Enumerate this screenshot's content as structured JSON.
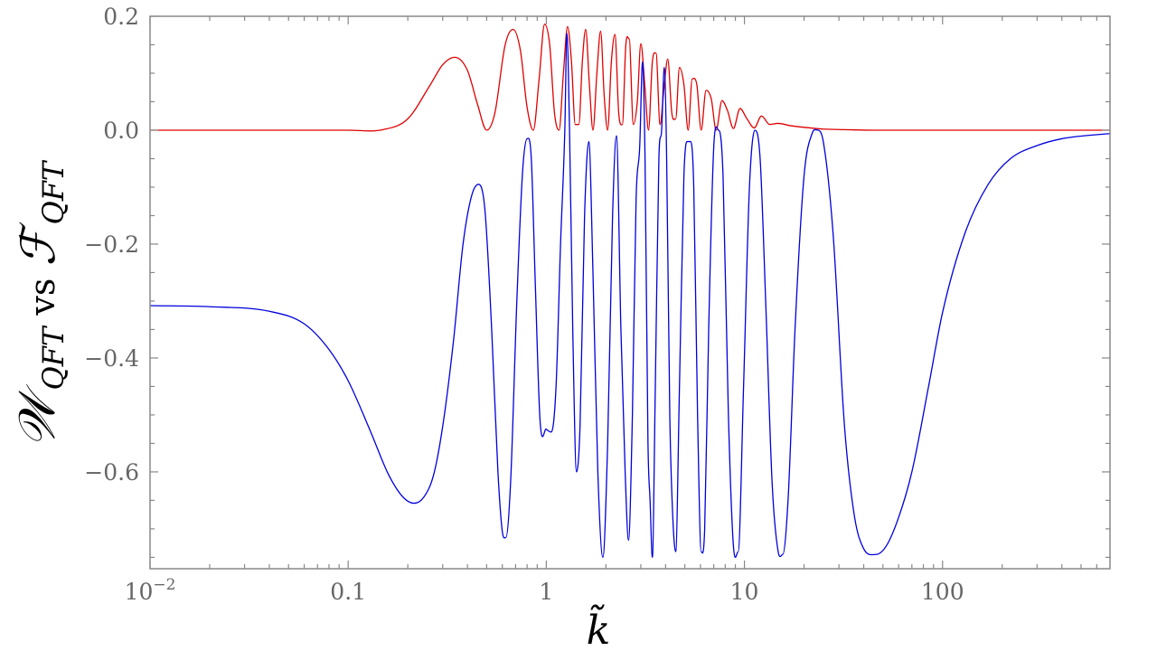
{
  "chart_data": {
    "type": "line",
    "title": "",
    "xlabel": "k̃",
    "ylabel_parts": {
      "w_symbol": "𝒲",
      "w_subscript": "QFT",
      "vs": "vs",
      "f_symbol": "ℱ",
      "f_subscript": "QFT"
    },
    "x_scale": "log",
    "xlim": [
      0.01,
      700
    ],
    "ylim": [
      -0.77,
      0.2
    ],
    "grid": false,
    "x_ticks": [
      {
        "value": 0.01,
        "base": "10",
        "exp": "−2"
      },
      {
        "value": 0.1,
        "label": "0.1"
      },
      {
        "value": 1,
        "label": "1"
      },
      {
        "value": 10,
        "label": "10"
      },
      {
        "value": 100,
        "label": "100"
      }
    ],
    "y_ticks": [
      {
        "value": 0.2,
        "label": "0.2"
      },
      {
        "value": 0.0,
        "label": "0.0"
      },
      {
        "value": -0.2,
        "label": "−0.2"
      },
      {
        "value": -0.4,
        "label": "−0.4"
      },
      {
        "value": -0.6,
        "label": "−0.6"
      }
    ],
    "series": [
      {
        "color": "#e00000",
        "points": [
          [
            0.01,
            0.0
          ],
          [
            0.1,
            0.0
          ],
          [
            0.15,
            0.001
          ],
          [
            0.2,
            0.02
          ],
          [
            0.26,
            0.08
          ],
          [
            0.3,
            0.115
          ],
          [
            0.345,
            0.128
          ],
          [
            0.4,
            0.105
          ],
          [
            0.45,
            0.045
          ],
          [
            0.5,
            0.0
          ],
          [
            0.55,
            0.03
          ],
          [
            0.62,
            0.15
          ],
          [
            0.68,
            0.177
          ],
          [
            0.74,
            0.14
          ],
          [
            0.8,
            0.04
          ],
          [
            0.86,
            0.0
          ],
          [
            0.92,
            0.09
          ],
          [
            0.98,
            0.186
          ],
          [
            1.04,
            0.15
          ],
          [
            1.1,
            0.03
          ],
          [
            1.16,
            0.0
          ],
          [
            1.22,
            0.1
          ],
          [
            1.28,
            0.182
          ],
          [
            1.34,
            0.12
          ],
          [
            1.4,
            0.01
          ],
          [
            1.46,
            0.01
          ],
          [
            1.52,
            0.12
          ],
          [
            1.58,
            0.177
          ],
          [
            1.65,
            0.08
          ],
          [
            1.72,
            0.0
          ],
          [
            1.8,
            0.1
          ],
          [
            1.88,
            0.174
          ],
          [
            1.96,
            0.06
          ],
          [
            2.04,
            0.0
          ],
          [
            2.13,
            0.12
          ],
          [
            2.22,
            0.168
          ],
          [
            2.32,
            0.03
          ],
          [
            2.42,
            0.01
          ],
          [
            2.52,
            0.15
          ],
          [
            2.62,
            0.16
          ],
          [
            2.75,
            0.01
          ],
          [
            2.88,
            0.05
          ],
          [
            3.0,
            0.152
          ],
          [
            3.14,
            0.08
          ],
          [
            3.28,
            0.0
          ],
          [
            3.43,
            0.12
          ],
          [
            3.58,
            0.135
          ],
          [
            3.75,
            0.01
          ],
          [
            3.92,
            0.07
          ],
          [
            4.1,
            0.125
          ],
          [
            4.3,
            0.03
          ],
          [
            4.5,
            0.02
          ],
          [
            4.7,
            0.11
          ],
          [
            4.95,
            0.08
          ],
          [
            5.2,
            0.0
          ],
          [
            5.45,
            0.09
          ],
          [
            5.75,
            0.08
          ],
          [
            6.05,
            0.0
          ],
          [
            6.4,
            0.07
          ],
          [
            6.8,
            0.055
          ],
          [
            7.2,
            0.0
          ],
          [
            7.7,
            0.052
          ],
          [
            8.2,
            0.035
          ],
          [
            8.8,
            0.003
          ],
          [
            9.5,
            0.038
          ],
          [
            10.3,
            0.02
          ],
          [
            11.2,
            0.004
          ],
          [
            12.2,
            0.025
          ],
          [
            13.4,
            0.01
          ],
          [
            14.8,
            0.012
          ],
          [
            17.0,
            0.008
          ],
          [
            20.0,
            0.005
          ],
          [
            25.0,
            0.002
          ],
          [
            32.0,
            0.001
          ],
          [
            45.0,
            0.0
          ],
          [
            100.0,
            0.0
          ],
          [
            700.0,
            0.0
          ]
        ]
      },
      {
        "color": "#0000dd",
        "points": [
          [
            0.01,
            -0.308
          ],
          [
            0.02,
            -0.31
          ],
          [
            0.04,
            -0.318
          ],
          [
            0.06,
            -0.34
          ],
          [
            0.08,
            -0.385
          ],
          [
            0.1,
            -0.44
          ],
          [
            0.13,
            -0.53
          ],
          [
            0.16,
            -0.605
          ],
          [
            0.19,
            -0.645
          ],
          [
            0.215,
            -0.655
          ],
          [
            0.24,
            -0.645
          ],
          [
            0.27,
            -0.605
          ],
          [
            0.3,
            -0.52
          ],
          [
            0.34,
            -0.37
          ],
          [
            0.38,
            -0.2
          ],
          [
            0.42,
            -0.115
          ],
          [
            0.455,
            -0.095
          ],
          [
            0.49,
            -0.14
          ],
          [
            0.53,
            -0.35
          ],
          [
            0.57,
            -0.6
          ],
          [
            0.6,
            -0.705
          ],
          [
            0.625,
            -0.715
          ],
          [
            0.66,
            -0.62
          ],
          [
            0.71,
            -0.3
          ],
          [
            0.76,
            -0.07
          ],
          [
            0.8,
            -0.015
          ],
          [
            0.84,
            -0.05
          ],
          [
            0.88,
            -0.27
          ],
          [
            0.93,
            -0.51
          ],
          [
            1.0,
            -0.525
          ],
          [
            1.06,
            -0.53
          ],
          [
            1.12,
            -0.45
          ],
          [
            1.18,
            -0.2
          ],
          [
            1.24,
            0.0
          ],
          [
            1.27,
            0.17
          ],
          [
            1.31,
            0.0
          ],
          [
            1.36,
            -0.35
          ],
          [
            1.42,
            -0.6
          ],
          [
            1.48,
            -0.52
          ],
          [
            1.56,
            -0.15
          ],
          [
            1.64,
            -0.02
          ],
          [
            1.72,
            -0.25
          ],
          [
            1.82,
            -0.6
          ],
          [
            1.93,
            -0.75
          ],
          [
            2.04,
            -0.55
          ],
          [
            2.16,
            -0.15
          ],
          [
            2.26,
            -0.01
          ],
          [
            2.38,
            -0.35
          ],
          [
            2.5,
            -0.6
          ],
          [
            2.6,
            -0.72
          ],
          [
            2.72,
            -0.5
          ],
          [
            2.84,
            -0.12
          ],
          [
            2.96,
            -0.03
          ],
          [
            3.06,
            0.12
          ],
          [
            3.15,
            -0.05
          ],
          [
            3.26,
            -0.55
          ],
          [
            3.34,
            -0.65
          ],
          [
            3.43,
            -0.75
          ],
          [
            3.55,
            -0.45
          ],
          [
            3.7,
            -0.05
          ],
          [
            3.82,
            0.0
          ],
          [
            3.94,
            0.11
          ],
          [
            4.05,
            -0.05
          ],
          [
            4.2,
            -0.5
          ],
          [
            4.35,
            -0.68
          ],
          [
            4.5,
            -0.74
          ],
          [
            4.7,
            -0.45
          ],
          [
            4.95,
            -0.08
          ],
          [
            5.15,
            -0.02
          ],
          [
            5.35,
            -0.02
          ],
          [
            5.55,
            -0.1
          ],
          [
            5.8,
            -0.5
          ],
          [
            6.05,
            -0.74
          ],
          [
            6.3,
            -0.7
          ],
          [
            6.6,
            -0.35
          ],
          [
            7.0,
            -0.03
          ],
          [
            7.4,
            0.0
          ],
          [
            7.8,
            -0.08
          ],
          [
            8.3,
            -0.5
          ],
          [
            8.8,
            -0.73
          ],
          [
            9.3,
            -0.74
          ],
          [
            9.9,
            -0.45
          ],
          [
            10.6,
            -0.1
          ],
          [
            11.3,
            0.0
          ],
          [
            12.0,
            -0.05
          ],
          [
            12.8,
            -0.3
          ],
          [
            13.8,
            -0.62
          ],
          [
            14.8,
            -0.74
          ],
          [
            15.6,
            -0.745
          ],
          [
            16.6,
            -0.65
          ],
          [
            18.0,
            -0.35
          ],
          [
            20.0,
            -0.08
          ],
          [
            22.0,
            -0.005
          ],
          [
            23.5,
            0.0
          ],
          [
            25.0,
            -0.02
          ],
          [
            28.0,
            -0.18
          ],
          [
            32.0,
            -0.52
          ],
          [
            36.0,
            -0.68
          ],
          [
            40.0,
            -0.735
          ],
          [
            46.0,
            -0.745
          ],
          [
            52.0,
            -0.73
          ],
          [
            60.0,
            -0.68
          ],
          [
            70.0,
            -0.6
          ],
          [
            85.0,
            -0.45
          ],
          [
            100.0,
            -0.32
          ],
          [
            130.0,
            -0.18
          ],
          [
            170.0,
            -0.095
          ],
          [
            220.0,
            -0.05
          ],
          [
            300.0,
            -0.027
          ],
          [
            400.0,
            -0.015
          ],
          [
            550.0,
            -0.009
          ],
          [
            700.0,
            -0.006
          ]
        ]
      }
    ]
  }
}
